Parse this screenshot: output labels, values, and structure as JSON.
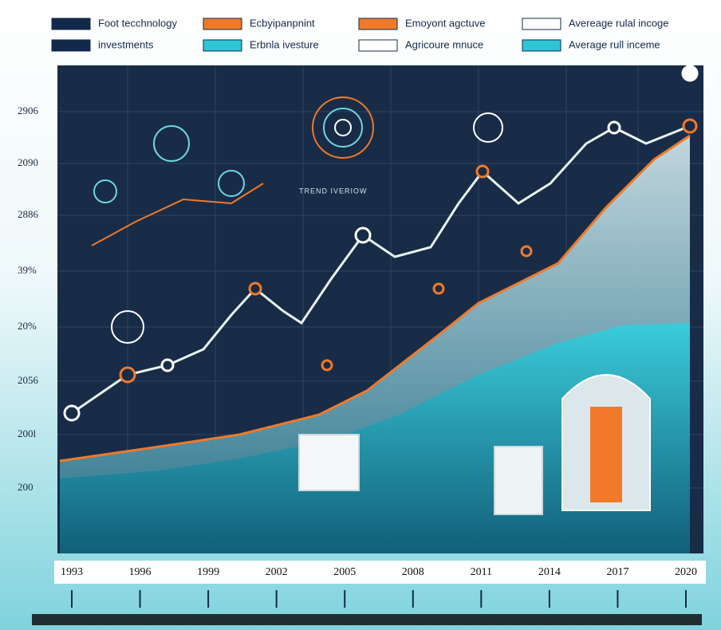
{
  "legend": [
    {
      "label": "Foot tecchnology",
      "color": "#13294b"
    },
    {
      "label": "Ecbyipanpnint",
      "color": "#f07a2a"
    },
    {
      "label": "Emoyont agctuve",
      "color": "#f07a2a"
    },
    {
      "label": "Avereage rulal incoge",
      "color": "#ffffff"
    },
    {
      "label": "investments",
      "color": "#13294b"
    },
    {
      "label": "Erbnla ivesture",
      "color": "#2cc6d6"
    },
    {
      "label": "Agricoure mnuce",
      "color": "#ffffff"
    },
    {
      "label": "Average rull inceme",
      "color": "#2cc6d6"
    }
  ],
  "y_labels": [
    "2906",
    "2090",
    "2886",
    "39%",
    "20%",
    "2056",
    "200l",
    "200"
  ],
  "x_labels": [
    "1993",
    "1996",
    "1999",
    "2002",
    "2005",
    "2008",
    "2011",
    "2014",
    "2017",
    "2020"
  ],
  "annotation": "TREND IVERIOW"
}
